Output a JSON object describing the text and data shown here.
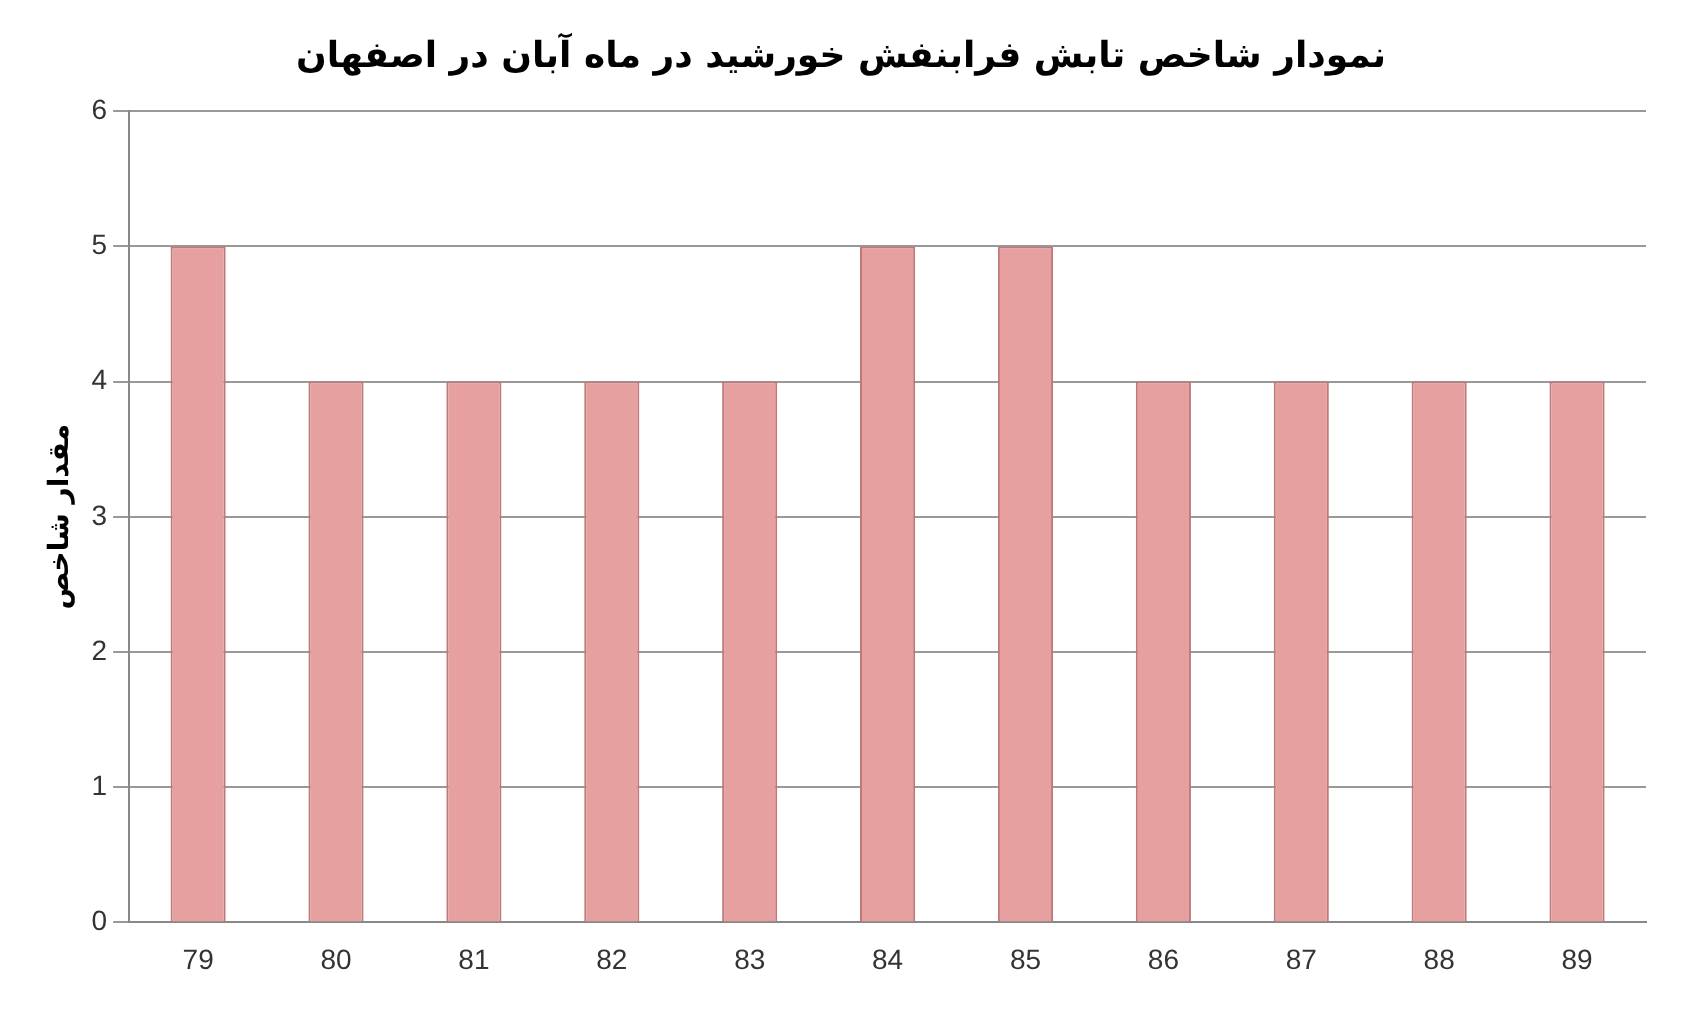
{
  "chart_data": {
    "type": "bar",
    "title": "نمودار شاخص تابش فرابنفش خورشید در ماه آبان در اصفهان",
    "ylabel": "مقدار شاخص",
    "categories": [
      "79",
      "80",
      "81",
      "82",
      "83",
      "84",
      "85",
      "86",
      "87",
      "88",
      "89"
    ],
    "values": [
      5,
      4,
      4,
      4,
      4,
      5,
      5,
      4,
      4,
      4,
      4
    ],
    "color": "#e6a0a0",
    "ylim": [
      0,
      6
    ],
    "yticks": [
      0,
      1,
      2,
      3,
      4,
      5,
      6
    ],
    "grid": "y",
    "legend": false
  }
}
